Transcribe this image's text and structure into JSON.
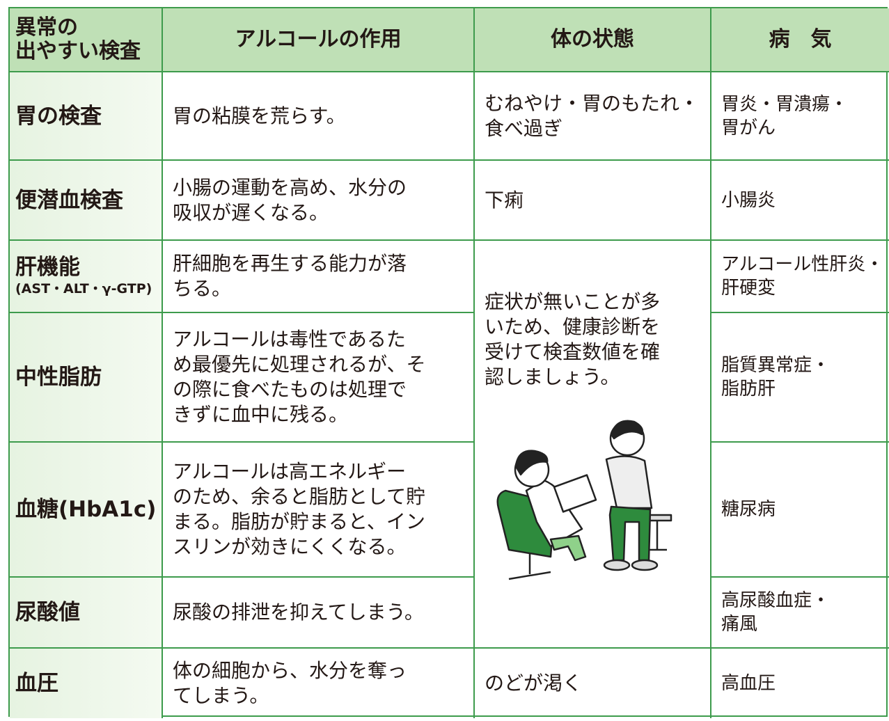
{
  "header": {
    "columns": [
      [
        "異常の",
        "出やすい検査"
      ],
      [
        "アルコールの作用"
      ],
      [
        "体の状態"
      ],
      [
        "病　気"
      ]
    ]
  },
  "rows": [
    {
      "test": [
        "胃の検査"
      ],
      "effect": [
        "胃の粘膜を荒らす。"
      ],
      "condition": [
        "むねやけ・胃のもたれ・",
        "食べ過ぎ"
      ],
      "disease": [
        "胃炎・胃潰瘍・",
        "胃がん"
      ]
    },
    {
      "test": [
        "便潜血検査"
      ],
      "effect": [
        "小腸の運動を高め、水分の",
        "吸収が遅くなる。"
      ],
      "condition": [
        "下痢"
      ],
      "disease": [
        "小腸炎"
      ]
    },
    {
      "test": [
        "肝機能",
        "(AST・ALT・γ-GTP)"
      ],
      "effect": [
        "肝細胞を再生する能力が落",
        "ちる。"
      ],
      "disease": [
        "アルコール性肝炎・",
        "肝硬変"
      ]
    },
    {
      "test": [
        "中性脂肪"
      ],
      "effect": [
        "アルコールは毒性であるた",
        "め最優先に処理されるが、そ",
        "の際に食べたものは処理で",
        "きずに血中に残る。"
      ],
      "disease": [
        "脂質異常症・",
        "脂肪肝"
      ]
    },
    {
      "test": [
        "血糖(HbA1c)"
      ],
      "effect": [
        "アルコールは高エネルギー",
        "のため、余ると脂肪として貯",
        "まる。脂肪が貯まると、イン",
        "スリンが効きにくくなる。"
      ],
      "disease": [
        "糖尿病"
      ]
    },
    {
      "test": [
        "尿酸値"
      ],
      "effect": [
        "尿酸の排泄を抑えてしまう。"
      ],
      "disease": [
        "高尿酸血症・",
        "痛風"
      ]
    },
    {
      "test": [
        "血圧"
      ],
      "effect": [
        "体の細胞から、水分を奪っ",
        "てしまう。"
      ],
      "condition": [
        "のどが渇く"
      ],
      "disease": [
        "高血圧"
      ]
    }
  ],
  "shared_condition": [
    "症状が無いことが多",
    "いため、健康診断を",
    "受けて検査数値を確",
    "認しましょう。"
  ]
}
